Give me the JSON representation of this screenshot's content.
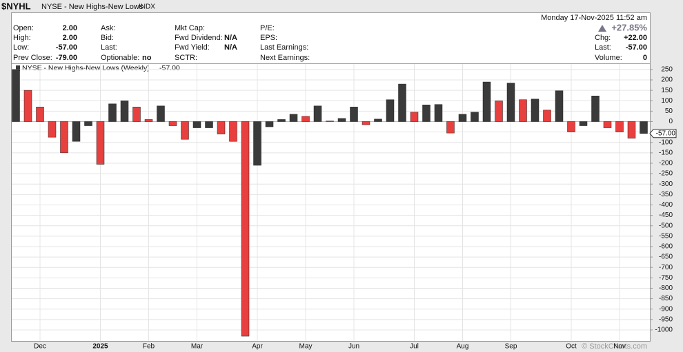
{
  "header": {
    "symbol": "$NYHL",
    "name": "NYSE - New Highs-New Lows",
    "exchange": "INDX",
    "date": "Monday  17-Nov-2025 11:52 am",
    "change_pct": "+27.85%",
    "columns": [
      [
        {
          "label": "Open:",
          "value": "2.00"
        },
        {
          "label": "High:",
          "value": "2.00"
        },
        {
          "label": "Low:",
          "value": "-57.00"
        },
        {
          "label": "Prev Close:",
          "value": "-79.00"
        }
      ],
      [
        {
          "label": "Ask:"
        },
        {
          "label": "Bid:"
        },
        {
          "label": "Last:"
        },
        {
          "label": "Optionable:",
          "value": "no"
        }
      ],
      [
        {
          "label": "Mkt Cap:"
        },
        {
          "label": "Fwd Dividend:",
          "value": "N/A"
        },
        {
          "label": "Fwd Yield:",
          "value": "N/A"
        },
        {
          "label": "SCTR:"
        }
      ],
      [
        {
          "label": "P/E:"
        },
        {
          "label": "EPS:"
        },
        {
          "label": "Last Earnings:"
        },
        {
          "label": "Next Earnings:"
        }
      ]
    ],
    "right": [
      {
        "label": "Chg:",
        "value": "+22.00"
      },
      {
        "label": "Last:",
        "value": "-57.00"
      },
      {
        "label": "Volume:",
        "value": "0"
      }
    ]
  },
  "chart_data": {
    "type": "bar",
    "legend": "NYSE - New Highs-New Lows (Weekly)",
    "last_label": "-57.00",
    "watermark": "© StockCharts.com",
    "categories": [
      null,
      null,
      "Dec",
      null,
      null,
      null,
      null,
      "2025",
      null,
      null,
      null,
      "Feb",
      null,
      null,
      null,
      "Mar",
      null,
      null,
      null,
      null,
      "Apr",
      null,
      null,
      null,
      "May",
      null,
      null,
      null,
      "Jun",
      null,
      null,
      null,
      null,
      "Jul",
      null,
      null,
      null,
      "Aug",
      null,
      null,
      null,
      "Sep",
      null,
      null,
      null,
      null,
      "Oct",
      null,
      null,
      null,
      "Nov",
      null,
      null
    ],
    "values": [
      250,
      150,
      70,
      -75,
      -150,
      -95,
      -20,
      -205,
      85,
      100,
      70,
      10,
      75,
      -20,
      -85,
      -30,
      -30,
      -60,
      -95,
      -1030,
      -210,
      -25,
      10,
      35,
      25,
      75,
      3,
      15,
      70,
      -15,
      12,
      105,
      180,
      45,
      80,
      82,
      -55,
      35,
      45,
      190,
      100,
      185,
      105,
      108,
      55,
      148,
      -50,
      -20,
      123,
      -30,
      -50,
      -80,
      -57
    ],
    "colors": [
      "#3a3a3a",
      "#e8403f",
      "#e8403f",
      "#e8403f",
      "#e8403f",
      "#3a3a3a",
      "#3a3a3a",
      "#e8403f",
      "#3a3a3a",
      "#3a3a3a",
      "#e8403f",
      "#e8403f",
      "#3a3a3a",
      "#e8403f",
      "#e8403f",
      "#3a3a3a",
      "#3a3a3a",
      "#e8403f",
      "#e8403f",
      "#e8403f",
      "#3a3a3a",
      "#3a3a3a",
      "#3a3a3a",
      "#3a3a3a",
      "#e8403f",
      "#3a3a3a",
      "#e8403f",
      "#3a3a3a",
      "#3a3a3a",
      "#e8403f",
      "#3a3a3a",
      "#3a3a3a",
      "#3a3a3a",
      "#e8403f",
      "#3a3a3a",
      "#3a3a3a",
      "#e8403f",
      "#3a3a3a",
      "#3a3a3a",
      "#3a3a3a",
      "#e8403f",
      "#3a3a3a",
      "#e8403f",
      "#3a3a3a",
      "#e8403f",
      "#3a3a3a",
      "#e8403f",
      "#3a3a3a",
      "#3a3a3a",
      "#e8403f",
      "#e8403f",
      "#e8403f",
      "#3a3a3a"
    ],
    "ylim": [
      -1053,
      276
    ],
    "yticks": [
      250,
      200,
      150,
      100,
      50,
      0,
      -50,
      -100,
      -150,
      -200,
      -250,
      -300,
      -350,
      -400,
      -450,
      -500,
      -550,
      -600,
      -650,
      -700,
      -750,
      -800,
      -850,
      -900,
      -950,
      -1000
    ],
    "grid": true
  }
}
